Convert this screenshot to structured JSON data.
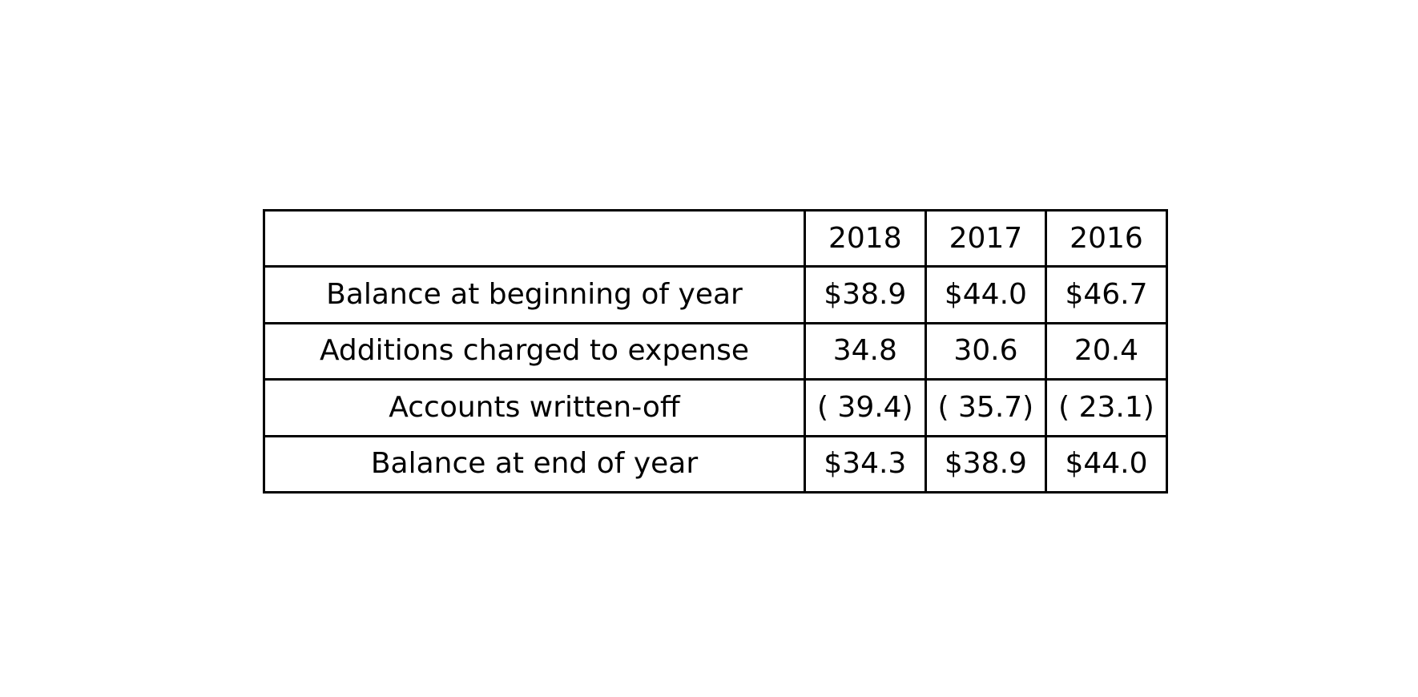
{
  "chart_data": {
    "type": "table",
    "columns": [
      "",
      "2018",
      "2017",
      "2016"
    ],
    "rows": [
      [
        "Balance at beginning of year",
        "$38.9",
        "$44.0",
        "$46.7"
      ],
      [
        "Additions charged to expense",
        "34.8",
        "30.6",
        "20.4"
      ],
      [
        "Accounts written-off",
        "( 39.4)",
        "( 35.7)",
        "( 23.1)"
      ],
      [
        "Balance at end of year",
        "$34.3",
        "$38.9",
        "$44.0"
      ]
    ]
  }
}
